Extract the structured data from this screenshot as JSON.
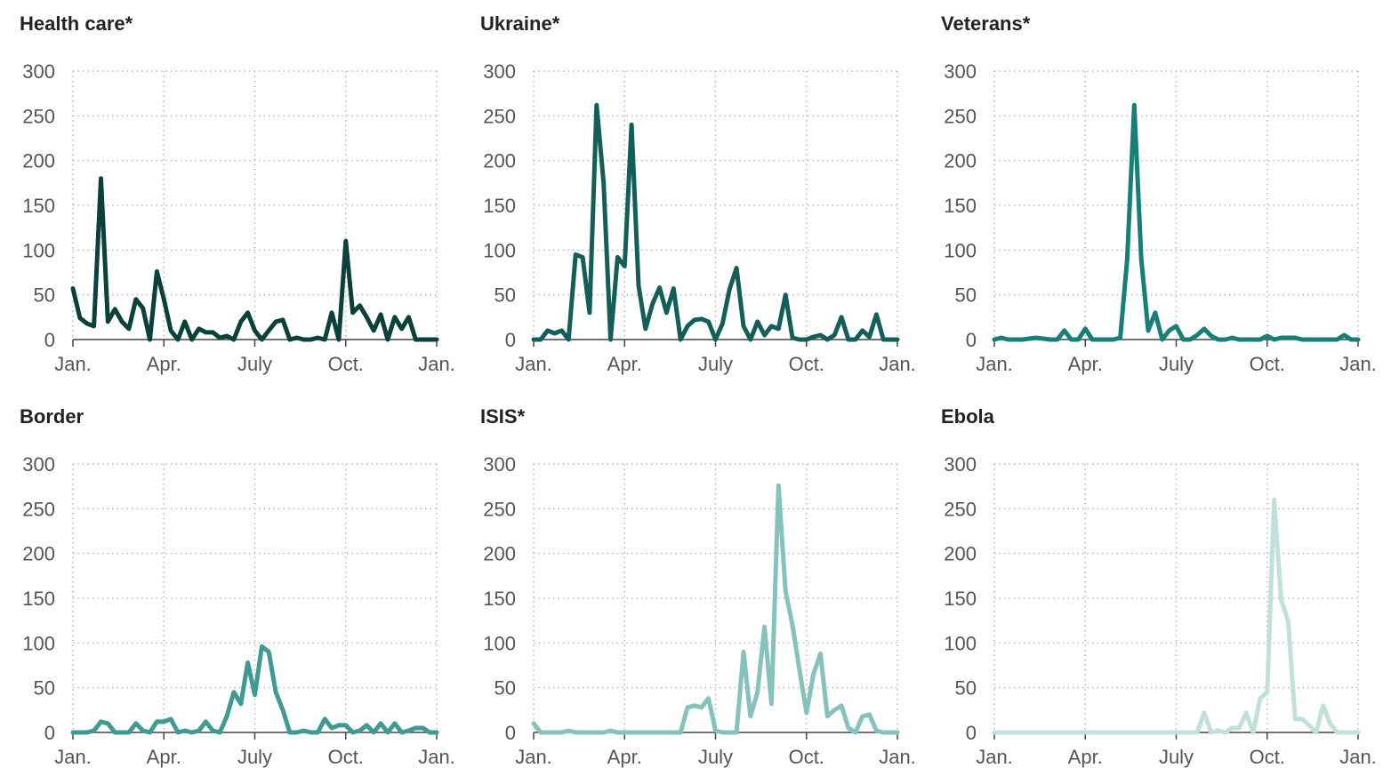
{
  "chart_data": [
    {
      "type": "line",
      "title": "Health care*",
      "color": "#0c403a",
      "ylim": [
        0,
        300
      ],
      "yticks": [
        "0",
        "50",
        "100",
        "150",
        "200",
        "250",
        "300"
      ],
      "xticks": [
        "Jan.",
        "Apr.",
        "July",
        "Oct.",
        "Jan."
      ],
      "x": [
        1,
        2,
        3,
        4,
        5,
        6,
        7,
        8,
        9,
        10,
        11,
        12,
        13,
        14,
        15,
        16,
        17,
        18,
        19,
        20,
        21,
        22,
        23,
        24,
        25,
        26,
        27,
        28,
        29,
        30,
        31,
        32,
        33,
        34,
        35,
        36,
        37,
        38,
        39,
        40,
        41,
        42,
        43,
        44,
        45,
        46,
        47,
        48,
        49,
        50,
        51,
        52,
        53
      ],
      "values": [
        57,
        24,
        18,
        15,
        180,
        20,
        34,
        20,
        12,
        45,
        35,
        0,
        76,
        45,
        10,
        0,
        20,
        0,
        12,
        8,
        8,
        2,
        4,
        0,
        20,
        30,
        10,
        0,
        10,
        20,
        22,
        0,
        2,
        0,
        0,
        2,
        0,
        30,
        0,
        110,
        30,
        38,
        25,
        10,
        28,
        0,
        25,
        12,
        25,
        0,
        0,
        0,
        0
      ]
    },
    {
      "type": "line",
      "title": "Ukraine*",
      "color": "#135e58",
      "ylim": [
        0,
        300
      ],
      "yticks": [
        "0",
        "50",
        "100",
        "150",
        "200",
        "250",
        "300"
      ],
      "xticks": [
        "Jan.",
        "Apr.",
        "July",
        "Oct.",
        "Jan."
      ],
      "x": [
        1,
        2,
        3,
        4,
        5,
        6,
        7,
        8,
        9,
        10,
        11,
        12,
        13,
        14,
        15,
        16,
        17,
        18,
        19,
        20,
        21,
        22,
        23,
        24,
        25,
        26,
        27,
        28,
        29,
        30,
        31,
        32,
        33,
        34,
        35,
        36,
        37,
        38,
        39,
        40,
        41,
        42,
        43,
        44,
        45,
        46,
        47,
        48,
        49,
        50,
        51,
        52,
        53
      ],
      "values": [
        0,
        0,
        10,
        7,
        10,
        0,
        95,
        92,
        30,
        262,
        175,
        0,
        92,
        82,
        240,
        60,
        12,
        40,
        58,
        30,
        57,
        0,
        15,
        22,
        23,
        20,
        0,
        18,
        56,
        80,
        15,
        0,
        20,
        5,
        15,
        12,
        50,
        2,
        0,
        0,
        3,
        5,
        0,
        5,
        25,
        0,
        0,
        10,
        3,
        28,
        0,
        0,
        0
      ]
    },
    {
      "type": "line",
      "title": "Veterans*",
      "color": "#157f78",
      "ylim": [
        0,
        300
      ],
      "yticks": [
        "0",
        "50",
        "100",
        "150",
        "200",
        "250",
        "300"
      ],
      "xticks": [
        "Jan.",
        "Apr.",
        "July",
        "Oct.",
        "Jan."
      ],
      "x": [
        1,
        2,
        3,
        4,
        5,
        6,
        7,
        8,
        9,
        10,
        11,
        12,
        13,
        14,
        15,
        16,
        17,
        18,
        19,
        20,
        21,
        22,
        23,
        24,
        25,
        26,
        27,
        28,
        29,
        30,
        31,
        32,
        33,
        34,
        35,
        36,
        37,
        38,
        39,
        40,
        41,
        42,
        43,
        44,
        45,
        46,
        47,
        48,
        49,
        50,
        51,
        52,
        53
      ],
      "values": [
        0,
        2,
        0,
        0,
        0,
        1,
        2,
        1,
        0,
        0,
        10,
        0,
        0,
        12,
        0,
        0,
        0,
        0,
        2,
        90,
        262,
        90,
        10,
        30,
        0,
        10,
        15,
        0,
        0,
        5,
        12,
        4,
        0,
        0,
        2,
        0,
        0,
        0,
        0,
        4,
        0,
        2,
        2,
        2,
        0,
        0,
        0,
        0,
        0,
        0,
        5,
        0,
        0
      ]
    },
    {
      "type": "line",
      "title": "Border",
      "color": "#3e9a92",
      "ylim": [
        0,
        300
      ],
      "yticks": [
        "0",
        "50",
        "100",
        "150",
        "200",
        "250",
        "300"
      ],
      "xticks": [
        "Jan.",
        "Apr.",
        "July",
        "Oct.",
        "Jan."
      ],
      "x": [
        1,
        2,
        3,
        4,
        5,
        6,
        7,
        8,
        9,
        10,
        11,
        12,
        13,
        14,
        15,
        16,
        17,
        18,
        19,
        20,
        21,
        22,
        23,
        24,
        25,
        26,
        27,
        28,
        29,
        30,
        31,
        32,
        33,
        34,
        35,
        36,
        37,
        38,
        39,
        40,
        41,
        42,
        43,
        44,
        45,
        46,
        47,
        48,
        49,
        50,
        51,
        52,
        53
      ],
      "values": [
        0,
        0,
        0,
        2,
        12,
        10,
        0,
        0,
        0,
        10,
        2,
        0,
        12,
        12,
        15,
        0,
        2,
        0,
        2,
        12,
        2,
        0,
        18,
        45,
        32,
        78,
        42,
        96,
        90,
        45,
        25,
        0,
        0,
        2,
        0,
        0,
        15,
        5,
        8,
        8,
        0,
        2,
        8,
        0,
        10,
        0,
        10,
        0,
        2,
        5,
        5,
        0,
        0
      ]
    },
    {
      "type": "line",
      "title": "ISIS*",
      "color": "#86c2bc",
      "ylim": [
        0,
        300
      ],
      "yticks": [
        "0",
        "50",
        "100",
        "150",
        "200",
        "250",
        "300"
      ],
      "xticks": [
        "Jan.",
        "Apr.",
        "July",
        "Oct.",
        "Jan."
      ],
      "x": [
        1,
        2,
        3,
        4,
        5,
        6,
        7,
        8,
        9,
        10,
        11,
        12,
        13,
        14,
        15,
        16,
        17,
        18,
        19,
        20,
        21,
        22,
        23,
        24,
        25,
        26,
        27,
        28,
        29,
        30,
        31,
        32,
        33,
        34,
        35,
        36,
        37,
        38,
        39,
        40,
        41,
        42,
        43,
        44,
        45,
        46,
        47,
        48,
        49,
        50,
        51,
        52,
        53
      ],
      "values": [
        10,
        0,
        0,
        0,
        0,
        2,
        0,
        0,
        0,
        0,
        0,
        2,
        0,
        0,
        0,
        0,
        0,
        0,
        0,
        0,
        0,
        0,
        28,
        30,
        28,
        38,
        2,
        0,
        0,
        0,
        90,
        18,
        45,
        118,
        32,
        276,
        158,
        120,
        70,
        22,
        65,
        88,
        18,
        25,
        30,
        5,
        0,
        18,
        20,
        2,
        0,
        0,
        0
      ]
    },
    {
      "type": "line",
      "title": "Ebola",
      "color": "#c1e0dc",
      "ylim": [
        0,
        300
      ],
      "yticks": [
        "0",
        "50",
        "100",
        "150",
        "200",
        "250",
        "300"
      ],
      "xticks": [
        "Jan.",
        "Apr.",
        "July",
        "Oct.",
        "Jan."
      ],
      "x": [
        1,
        2,
        3,
        4,
        5,
        6,
        7,
        8,
        9,
        10,
        11,
        12,
        13,
        14,
        15,
        16,
        17,
        18,
        19,
        20,
        21,
        22,
        23,
        24,
        25,
        26,
        27,
        28,
        29,
        30,
        31,
        32,
        33,
        34,
        35,
        36,
        37,
        38,
        39,
        40,
        41,
        42,
        43,
        44,
        45,
        46,
        47,
        48,
        49,
        50,
        51,
        52,
        53
      ],
      "values": [
        0,
        0,
        0,
        0,
        0,
        0,
        0,
        0,
        0,
        0,
        0,
        0,
        0,
        0,
        0,
        0,
        0,
        0,
        0,
        0,
        0,
        0,
        0,
        0,
        0,
        0,
        0,
        0,
        0,
        0,
        22,
        0,
        2,
        0,
        5,
        5,
        22,
        0,
        38,
        45,
        260,
        148,
        125,
        15,
        15,
        8,
        0,
        30,
        10,
        0,
        0,
        0,
        0
      ]
    }
  ]
}
